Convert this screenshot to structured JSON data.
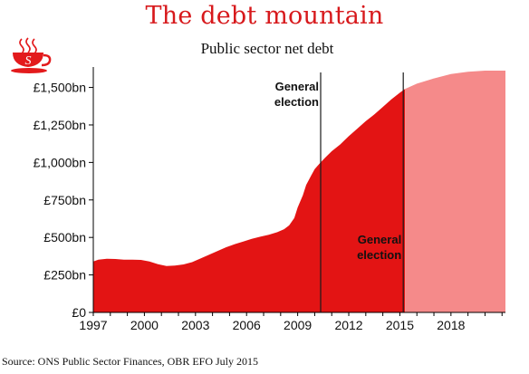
{
  "header": {
    "title": "The debt mountain",
    "subtitle": "Public sector net debt"
  },
  "footer": {
    "source": "Source: ONS Public Sector Finances, OBR EFO July 2015"
  },
  "logo": {
    "letter": "S",
    "icon": "teacup-logo-icon",
    "color": "#e31a1c"
  },
  "colors": {
    "actual": "#e31414",
    "forecast": "#f58a8a",
    "axis": "#000000"
  },
  "chart_data": {
    "type": "area",
    "title": "Public sector net debt",
    "xlabel": "",
    "ylabel": "",
    "xlim": [
      1997,
      2021.2
    ],
    "ylim": [
      0,
      1600
    ],
    "x_ticks": [
      1997,
      2000,
      2003,
      2006,
      2009,
      2012,
      2015,
      2018
    ],
    "x_tick_labels": [
      "1997",
      "2000",
      "2003",
      "2006",
      "2009",
      "2012",
      "2015",
      "2018"
    ],
    "y_ticks": [
      0,
      250,
      500,
      750,
      1000,
      1250,
      1500
    ],
    "y_tick_labels": [
      "£0",
      "£250bn",
      "£500bn",
      "£750bn",
      "£1,000bn",
      "£1,250bn",
      "£1,500bn"
    ],
    "grid": false,
    "series": [
      {
        "name": "",
        "style": "actual",
        "x": [
          1997.0,
          1997.3,
          1997.8,
          1998.3,
          1998.8,
          1999.3,
          1999.8,
          2000.3,
          2000.8,
          2001.3,
          2001.8,
          2002.3,
          2002.8,
          2003.3,
          2003.8,
          2004.3,
          2004.8,
          2005.3,
          2005.8,
          2006.3,
          2006.8,
          2007.3,
          2007.8,
          2008.2,
          2008.5,
          2008.8,
          2009.0,
          2009.3,
          2009.5,
          2009.8,
          2010.0,
          2010.3,
          2010.6,
          2011.0,
          2011.5,
          2012.0,
          2012.5,
          2013.0,
          2013.5,
          2014.0,
          2014.5,
          2015.0,
          2015.3
        ],
        "y": [
          340,
          352,
          358,
          356,
          352,
          352,
          350,
          340,
          322,
          310,
          312,
          320,
          335,
          360,
          385,
          410,
          435,
          455,
          472,
          490,
          505,
          518,
          535,
          555,
          580,
          630,
          700,
          780,
          850,
          915,
          955,
          995,
          1030,
          1075,
          1120,
          1175,
          1225,
          1275,
          1320,
          1370,
          1420,
          1465,
          1490
        ]
      },
      {
        "name": "",
        "style": "forecast",
        "x": [
          2015.3,
          2016,
          2017,
          2018,
          2019,
          2020,
          2021.2
        ],
        "y": [
          1490,
          1525,
          1560,
          1590,
          1605,
          1612,
          1612
        ]
      }
    ],
    "markers": [
      {
        "x": 2010.35,
        "label": [
          "General",
          "election"
        ],
        "label_y": 1480
      },
      {
        "x": 2015.2,
        "label": [
          "General",
          "election"
        ],
        "label_y": 460
      }
    ]
  }
}
